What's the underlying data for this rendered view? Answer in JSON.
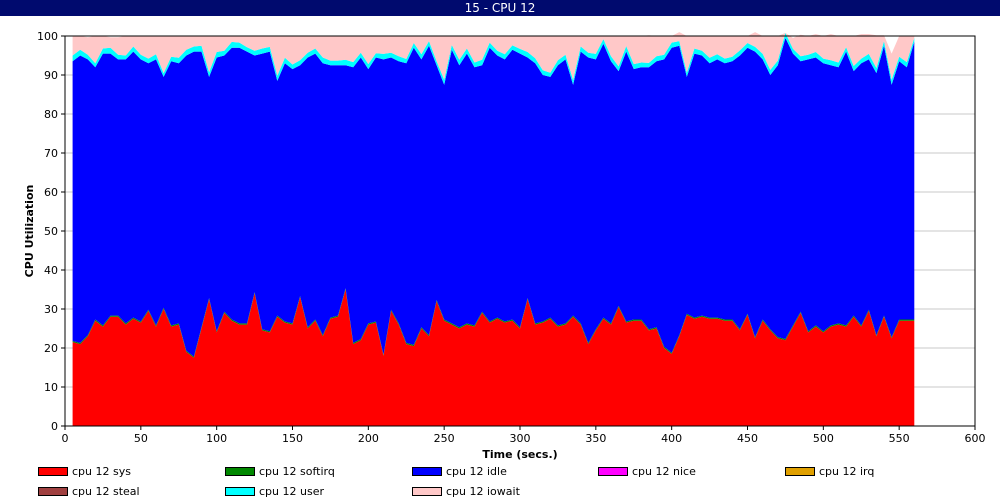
{
  "window": {
    "title": "15 - CPU 12"
  },
  "chart_data": {
    "type": "area",
    "stacked": true,
    "title": "",
    "xlabel": "Time (secs.)",
    "ylabel": "CPU Utilization",
    "xlim": [
      0,
      600
    ],
    "ylim": [
      0,
      100
    ],
    "xticks": [
      0,
      50,
      100,
      150,
      200,
      250,
      300,
      350,
      400,
      450,
      500,
      550,
      600
    ],
    "yticks": [
      0,
      10,
      20,
      30,
      40,
      50,
      60,
      70,
      80,
      90,
      100
    ],
    "grid": true,
    "legend_position": "bottom",
    "x": [
      5,
      10,
      15,
      20,
      25,
      30,
      35,
      40,
      45,
      50,
      55,
      60,
      65,
      70,
      75,
      80,
      85,
      90,
      95,
      100,
      105,
      110,
      115,
      120,
      125,
      130,
      135,
      140,
      145,
      150,
      155,
      160,
      165,
      170,
      175,
      180,
      185,
      190,
      195,
      200,
      205,
      210,
      215,
      220,
      225,
      230,
      235,
      240,
      245,
      250,
      255,
      260,
      265,
      270,
      275,
      280,
      285,
      290,
      295,
      300,
      305,
      310,
      315,
      320,
      325,
      330,
      335,
      340,
      345,
      350,
      355,
      360,
      365,
      370,
      375,
      380,
      385,
      390,
      395,
      400,
      405,
      410,
      415,
      420,
      425,
      430,
      435,
      440,
      445,
      450,
      455,
      460,
      465,
      470,
      475,
      480,
      485,
      490,
      495,
      500,
      505,
      510,
      515,
      520,
      525,
      530,
      535,
      540,
      545,
      550,
      555,
      560
    ],
    "series": [
      {
        "name": "cpu 12 sys",
        "color": "#ff0000",
        "values": [
          21.5,
          21,
          23,
          27,
          25.5,
          28,
          28,
          26,
          27.5,
          26.5,
          29.5,
          25.5,
          30,
          25.5,
          26,
          19,
          17.5,
          25,
          32.5,
          24,
          29,
          27,
          26,
          26,
          34,
          24.5,
          24,
          28,
          26.5,
          26,
          33,
          25,
          27,
          23,
          27.5,
          28,
          35,
          21,
          22,
          26,
          26.5,
          18,
          29.5,
          26,
          21,
          20.5,
          25,
          23,
          32,
          27,
          26,
          25,
          26,
          25.5,
          29,
          26.5,
          27.5,
          26.5,
          27,
          25,
          32.5,
          26,
          26.5,
          27.5,
          25.5,
          26,
          28,
          26,
          21,
          24.5,
          27.5,
          26,
          30.5,
          26.5,
          27,
          27,
          24.5,
          25,
          20,
          18.5,
          23,
          28.5,
          27.5,
          28,
          27.5,
          27.5,
          27,
          27,
          24.5,
          28.5,
          22.5,
          27,
          24.5,
          22.5,
          22,
          25.5,
          29,
          24,
          25.5,
          24,
          25.5,
          26,
          25.5,
          28,
          25.5,
          29.5,
          23,
          28,
          22.5,
          27,
          27,
          27
        ]
      },
      {
        "name": "cpu 12 softirq",
        "color": "#008800",
        "values": [
          0.3,
          0.3,
          0.3,
          0.3,
          0.3,
          0.3,
          0.3,
          0.3,
          0.3,
          0.3,
          0.3,
          0.3,
          0.3,
          0.3,
          0.3,
          0.3,
          0.3,
          0.3,
          0.3,
          0.3,
          0.3,
          0.3,
          0.3,
          0.3,
          0.3,
          0.3,
          0.3,
          0.3,
          0.3,
          0.3,
          0.3,
          0.3,
          0.3,
          0.3,
          0.3,
          0.3,
          0.3,
          0.3,
          0.3,
          0.3,
          0.3,
          0.3,
          0.3,
          0.3,
          0.3,
          0.3,
          0.3,
          0.3,
          0.3,
          0.3,
          0.3,
          0.3,
          0.3,
          0.3,
          0.3,
          0.3,
          0.3,
          0.3,
          0.3,
          0.3,
          0.3,
          0.3,
          0.3,
          0.3,
          0.3,
          0.3,
          0.3,
          0.3,
          0.3,
          0.3,
          0.3,
          0.3,
          0.3,
          0.3,
          0.3,
          0.3,
          0.3,
          0.3,
          0.3,
          0.3,
          0.3,
          0.3,
          0.3,
          0.3,
          0.3,
          0.3,
          0.3,
          0.3,
          0.3,
          0.3,
          0.3,
          0.3,
          0.3,
          0.3,
          0.3,
          0.3,
          0.3,
          0.3,
          0.3,
          0.3,
          0.3,
          0.3,
          0.3,
          0.3,
          0.3,
          0.3,
          0.3,
          0.3,
          0.3,
          0.3,
          0.3,
          0.3
        ]
      },
      {
        "name": "cpu 12 idle",
        "color": "#0000ff",
        "values": [
          71.7,
          73.7,
          70.7,
          64.7,
          69.7,
          67.2,
          65.7,
          67.7,
          68.2,
          67.2,
          63.2,
          68.2,
          59.2,
          67.7,
          66.7,
          75.7,
          78.2,
          70.7,
          56.7,
          70.2,
          65.7,
          69.7,
          70.7,
          69.7,
          60.7,
          70.7,
          71.7,
          60.2,
          66.2,
          65.2,
          59.2,
          69.2,
          68.2,
          69.7,
          64.7,
          64.2,
          57.2,
          70.7,
          72.2,
          65.2,
          67.7,
          75.7,
          64.7,
          67.2,
          71.7,
          76.2,
          68.7,
          74.2,
          60.2,
          60.2,
          70.2,
          67.2,
          69.2,
          66.2,
          63.2,
          70.2,
          67.2,
          67.2,
          69.2,
          70.2,
          61.7,
          66.7,
          63.2,
          61.7,
          66.7,
          67.7,
          59.2,
          69.7,
          73.2,
          69.2,
          70.2,
          67.2,
          60.2,
          69.2,
          64.2,
          64.7,
          67.2,
          68.2,
          73.7,
          78.2,
          74.2,
          60.7,
          67.7,
          66.7,
          65.2,
          66.2,
          65.7,
          66.2,
          70.2,
          68.2,
          73.2,
          66.7,
          65.2,
          69.7,
          77.2,
          69.7,
          64.2,
          69.7,
          68.7,
          68.7,
          66.7,
          65.7,
          70.2,
          62.7,
          67.2,
          64.2,
          67.2,
          69.2,
          64.7,
          66.2,
          64.7,
          71.2
        ]
      },
      {
        "name": "cpu 12 nice",
        "color": "#ff00ff",
        "values": [
          0,
          0,
          0,
          0,
          0,
          0,
          0,
          0,
          0,
          0,
          0,
          0,
          0,
          0,
          0,
          0,
          0,
          0,
          0,
          0,
          0,
          0,
          0,
          0,
          0,
          0,
          0,
          0,
          0,
          0,
          0,
          0,
          0,
          0,
          0,
          0,
          0,
          0,
          0,
          0,
          0,
          0,
          0,
          0,
          0,
          0,
          0,
          0,
          0,
          0,
          0,
          0,
          0,
          0,
          0,
          0,
          0,
          0,
          0,
          0,
          0,
          0,
          0,
          0,
          0,
          0,
          0,
          0,
          0,
          0,
          0,
          0,
          0,
          0,
          0,
          0,
          0,
          0,
          0,
          0,
          0,
          0,
          0,
          0,
          0,
          0,
          0,
          0,
          0,
          0,
          0,
          0,
          0,
          0,
          0,
          0,
          0,
          0,
          0,
          0,
          0,
          0,
          0,
          0,
          0,
          0,
          0,
          0,
          0,
          0,
          0,
          0
        ]
      },
      {
        "name": "cpu 12 irq",
        "color": "#e0a000",
        "values": [
          0,
          0,
          0,
          0,
          0,
          0,
          0,
          0,
          0,
          0,
          0,
          0,
          0,
          0,
          0,
          0,
          0,
          0,
          0,
          0,
          0,
          0,
          0,
          0,
          0,
          0,
          0,
          0,
          0,
          0,
          0,
          0,
          0,
          0,
          0,
          0,
          0,
          0,
          0,
          0,
          0,
          0,
          0,
          0,
          0,
          0,
          0,
          0,
          0,
          0,
          0,
          0,
          0,
          0,
          0,
          0,
          0,
          0,
          0,
          0,
          0,
          0,
          0,
          0,
          0,
          0,
          0,
          0,
          0,
          0,
          0,
          0,
          0,
          0,
          0,
          0,
          0,
          0,
          0,
          0,
          0,
          0,
          0,
          0,
          0,
          0,
          0,
          0,
          0,
          0,
          0,
          0,
          0,
          0,
          0,
          0,
          0,
          0,
          0,
          0,
          0,
          0,
          0,
          0,
          0,
          0,
          0,
          0,
          0,
          0,
          0,
          0
        ]
      },
      {
        "name": "cpu 12 steal",
        "color": "#a04040",
        "values": [
          0,
          0,
          0,
          0,
          0,
          0,
          0,
          0,
          0,
          0,
          0,
          0,
          0,
          0,
          0,
          0,
          0,
          0,
          0,
          0,
          0,
          0,
          0,
          0,
          0,
          0,
          0,
          0,
          0,
          0,
          0,
          0,
          0,
          0,
          0,
          0,
          0,
          0,
          0,
          0,
          0,
          0,
          0,
          0,
          0,
          0,
          0,
          0,
          0,
          0,
          0,
          0,
          0,
          0,
          0,
          0,
          0,
          0,
          0,
          0,
          0,
          0,
          0,
          0,
          0,
          0,
          0,
          0,
          0,
          0,
          0,
          0,
          0,
          0,
          0,
          0,
          0,
          0,
          0,
          0,
          0,
          0,
          0,
          0,
          0,
          0,
          0,
          0,
          0,
          0,
          0,
          0,
          0,
          0,
          0,
          0,
          0,
          0,
          0,
          0,
          0,
          0,
          0,
          0,
          0,
          0,
          0,
          0,
          0,
          0,
          0,
          0
        ]
      },
      {
        "name": "cpu 12 user",
        "color": "#00ffff",
        "values": [
          1.5,
          1.5,
          1.2,
          1,
          1.3,
          1.5,
          1.2,
          1,
          1.3,
          1.2,
          1.2,
          1.3,
          1,
          1.2,
          1.4,
          1.5,
          1.3,
          1.5,
          1.2,
          1.4,
          1.2,
          1.5,
          1.3,
          1.1,
          1.2,
          1.3,
          1.2,
          1.3,
          1.4,
          1.2,
          1.3,
          1.2,
          1.3,
          1.5,
          1.2,
          1.2,
          1.4,
          1.3,
          1.2,
          1.3,
          1.1,
          1.4,
          1.2,
          1.3,
          1.1,
          1.2,
          1.3,
          1.2,
          1,
          1.3,
          1.2,
          1.4,
          1.3,
          1.2,
          1.4,
          1.3,
          1.2,
          1.3,
          1.1,
          1.2,
          1.4,
          1.3,
          1.2,
          1.1,
          1.3,
          1.2,
          1.2,
          1.3,
          1.2,
          1.4,
          1.2,
          1.3,
          1.2,
          1.4,
          1.3,
          1.2,
          1.1,
          1.3,
          1.2,
          1.3,
          1.2,
          1.1,
          1.3,
          1.2,
          1.4,
          1.3,
          1.2,
          1.2,
          1.3,
          1.2,
          1.2,
          1.4,
          1.3,
          1.2,
          1.3,
          1.2,
          1.3,
          1.2,
          1.4,
          1.2,
          1.3,
          1.2,
          1.1,
          1.3,
          1.2,
          1.4,
          1.3,
          1.2,
          1.3,
          1.2,
          1.3,
          1
        ]
      },
      {
        "name": "cpu 12 iowait",
        "color": "#ffc8c8",
        "values": [
          5,
          3.5,
          4.5,
          7,
          3.2,
          2.7,
          4.5,
          5,
          2.7,
          4.8,
          5.8,
          4.7,
          9.5,
          5.3,
          5.6,
          3.5,
          2.7,
          2.5,
          9.3,
          4.1,
          3.8,
          1.5,
          1.7,
          2.9,
          3.8,
          3.2,
          2.8,
          10.2,
          5.6,
          7.3,
          6.2,
          4.3,
          3.2,
          5.5,
          6.3,
          6.3,
          6.1,
          6.7,
          4.3,
          7.2,
          4.4,
          4.6,
          4.3,
          5.2,
          5.9,
          1.8,
          4.7,
          1.3,
          6.5,
          11.2,
          2.3,
          6.1,
          3.2,
          6.8,
          6.1,
          1.7,
          3.8,
          4.7,
          2.4,
          3.3,
          4.1,
          5.7,
          8.8,
          9.4,
          6.2,
          4.8,
          11.3,
          2.7,
          4.3,
          4.6,
          0.8,
          5.2,
          7.8,
          2.6,
          7.2,
          6.8,
          7.1,
          5.2,
          4.8,
          1.7,
          2.3,
          9.4,
          3.2,
          3.8,
          5.6,
          4.7,
          5.8,
          5.3,
          3.7,
          1.8,
          3.8,
          4.6,
          8.7,
          6.3,
          0,
          2.8,
          5.5,
          4.8,
          4.6,
          5.8,
          6.7,
          6.8,
          2.9,
          7.7,
          6.3,
          5.1,
          8.4,
          1.5,
          6.7,
          5.3,
          6.7,
          0.5
        ]
      }
    ]
  }
}
